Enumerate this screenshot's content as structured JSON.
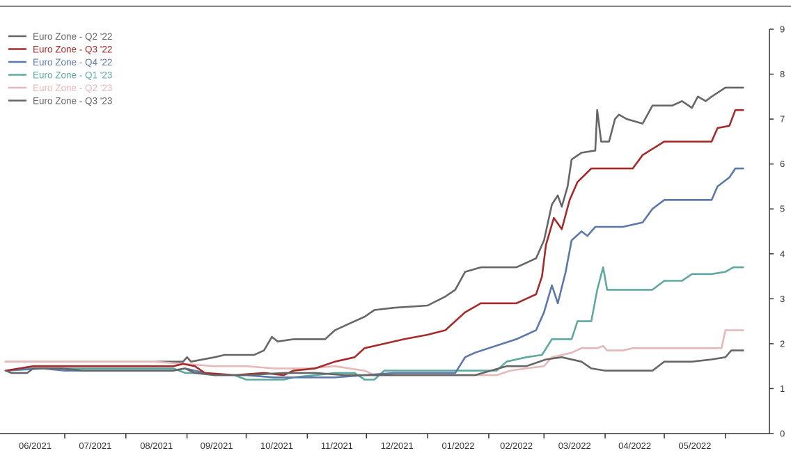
{
  "chart_data": {
    "type": "line",
    "title": "",
    "xlabel": "",
    "ylabel": "",
    "ylim": [
      0,
      9
    ],
    "yticks": [
      0,
      1,
      2,
      3,
      4,
      5,
      6,
      7,
      8,
      9
    ],
    "x_tick_labels": [
      "06/2021",
      "07/2021",
      "08/2021",
      "09/2021",
      "10/2021",
      "11/2021",
      "12/2021",
      "01/2022",
      "02/2022",
      "03/2022",
      "04/2022",
      "05/2022"
    ],
    "x_range": [
      "2021-06-01",
      "2022-06-12"
    ],
    "legend_position": "top-left",
    "grid": false,
    "series": [
      {
        "name": "Euro Zone - Q2 '22",
        "color": "#666666",
        "points": [
          [
            "2021-06-01",
            1.4
          ],
          [
            "2021-06-04",
            1.35
          ],
          [
            "2021-06-12",
            1.35
          ],
          [
            "2021-06-15",
            1.45
          ],
          [
            "2021-06-30",
            1.45
          ],
          [
            "2021-07-10",
            1.4
          ],
          [
            "2021-08-10",
            1.4
          ],
          [
            "2021-08-25",
            1.4
          ],
          [
            "2021-08-31",
            1.45
          ],
          [
            "2021-09-05",
            1.35
          ],
          [
            "2021-09-15",
            1.3
          ],
          [
            "2021-10-01",
            1.3
          ],
          [
            "2021-10-20",
            1.35
          ],
          [
            "2021-11-05",
            1.35
          ],
          [
            "2021-11-20",
            1.3
          ],
          [
            "2021-12-15",
            1.3
          ],
          [
            "2022-01-10",
            1.3
          ],
          [
            "2022-01-25",
            1.3
          ],
          [
            "2022-02-10",
            1.5
          ],
          [
            "2022-02-20",
            1.5
          ],
          [
            "2022-03-02",
            1.65
          ],
          [
            "2022-03-10",
            1.7
          ],
          [
            "2022-03-20",
            1.6
          ],
          [
            "2022-03-25",
            1.45
          ],
          [
            "2022-04-01",
            1.4
          ],
          [
            "2022-04-25",
            1.4
          ],
          [
            "2022-05-01",
            1.6
          ],
          [
            "2022-05-15",
            1.6
          ],
          [
            "2022-05-25",
            1.65
          ],
          [
            "2022-06-01",
            1.7
          ],
          [
            "2022-06-04",
            1.85
          ],
          [
            "2022-06-10",
            1.85
          ]
        ]
      },
      {
        "name": "Euro Zone - Q3 '22",
        "color": "#a52a2a",
        "points": [
          [
            "2021-06-01",
            1.4
          ],
          [
            "2021-06-15",
            1.5
          ],
          [
            "2021-07-15",
            1.5
          ],
          [
            "2021-08-01",
            1.5
          ],
          [
            "2021-08-25",
            1.5
          ],
          [
            "2021-08-30",
            1.55
          ],
          [
            "2021-09-05",
            1.5
          ],
          [
            "2021-09-10",
            1.35
          ],
          [
            "2021-09-25",
            1.3
          ],
          [
            "2021-10-10",
            1.35
          ],
          [
            "2021-10-20",
            1.3
          ],
          [
            "2021-10-25",
            1.4
          ],
          [
            "2021-11-05",
            1.45
          ],
          [
            "2021-11-15",
            1.6
          ],
          [
            "2021-11-25",
            1.7
          ],
          [
            "2021-11-30",
            1.9
          ],
          [
            "2021-12-10",
            2.0
          ],
          [
            "2021-12-20",
            2.1
          ],
          [
            "2022-01-01",
            2.2
          ],
          [
            "2022-01-10",
            2.3
          ],
          [
            "2022-01-20",
            2.7
          ],
          [
            "2022-01-28",
            2.9
          ],
          [
            "2022-02-15",
            2.9
          ],
          [
            "2022-02-20",
            3.0
          ],
          [
            "2022-02-25",
            3.1
          ],
          [
            "2022-02-28",
            3.5
          ],
          [
            "2022-03-02",
            4.2
          ],
          [
            "2022-03-06",
            4.8
          ],
          [
            "2022-03-10",
            4.55
          ],
          [
            "2022-03-14",
            5.2
          ],
          [
            "2022-03-18",
            5.6
          ],
          [
            "2022-03-25",
            5.9
          ],
          [
            "2022-04-15",
            5.9
          ],
          [
            "2022-04-20",
            6.2
          ],
          [
            "2022-05-01",
            6.5
          ],
          [
            "2022-05-25",
            6.5
          ],
          [
            "2022-05-28",
            6.8
          ],
          [
            "2022-06-03",
            6.85
          ],
          [
            "2022-06-06",
            7.2
          ],
          [
            "2022-06-10",
            7.2
          ]
        ]
      },
      {
        "name": "Euro Zone - Q4 '22",
        "color": "#5b78a8",
        "points": [
          [
            "2021-06-01",
            1.4
          ],
          [
            "2021-06-20",
            1.45
          ],
          [
            "2021-07-01",
            1.4
          ],
          [
            "2021-08-25",
            1.4
          ],
          [
            "2021-08-31",
            1.45
          ],
          [
            "2021-09-05",
            1.4
          ],
          [
            "2021-09-15",
            1.3
          ],
          [
            "2021-10-01",
            1.3
          ],
          [
            "2021-10-15",
            1.25
          ],
          [
            "2021-11-05",
            1.25
          ],
          [
            "2021-11-15",
            1.25
          ],
          [
            "2021-11-30",
            1.3
          ],
          [
            "2021-12-15",
            1.35
          ],
          [
            "2022-01-15",
            1.35
          ],
          [
            "2022-01-20",
            1.7
          ],
          [
            "2022-01-25",
            1.8
          ],
          [
            "2022-02-01",
            1.9
          ],
          [
            "2022-02-15",
            2.1
          ],
          [
            "2022-02-25",
            2.3
          ],
          [
            "2022-03-01",
            2.7
          ],
          [
            "2022-03-05",
            3.3
          ],
          [
            "2022-03-08",
            2.9
          ],
          [
            "2022-03-12",
            3.6
          ],
          [
            "2022-03-15",
            4.3
          ],
          [
            "2022-03-20",
            4.5
          ],
          [
            "2022-03-23",
            4.4
          ],
          [
            "2022-03-27",
            4.6
          ],
          [
            "2022-04-10",
            4.6
          ],
          [
            "2022-04-20",
            4.7
          ],
          [
            "2022-04-25",
            5.0
          ],
          [
            "2022-05-01",
            5.2
          ],
          [
            "2022-05-25",
            5.2
          ],
          [
            "2022-05-28",
            5.5
          ],
          [
            "2022-06-03",
            5.7
          ],
          [
            "2022-06-06",
            5.9
          ],
          [
            "2022-06-10",
            5.9
          ]
        ]
      },
      {
        "name": "Euro Zone - Q1 '23",
        "color": "#5fa8a0",
        "points": [
          [
            "2021-06-01",
            1.4
          ],
          [
            "2021-06-10",
            1.45
          ],
          [
            "2021-07-01",
            1.45
          ],
          [
            "2021-08-15",
            1.45
          ],
          [
            "2021-08-25",
            1.45
          ],
          [
            "2021-08-31",
            1.35
          ],
          [
            "2021-09-10",
            1.35
          ],
          [
            "2021-09-25",
            1.3
          ],
          [
            "2021-10-01",
            1.2
          ],
          [
            "2021-10-20",
            1.2
          ],
          [
            "2021-10-25",
            1.25
          ],
          [
            "2021-11-05",
            1.3
          ],
          [
            "2021-11-15",
            1.35
          ],
          [
            "2021-11-25",
            1.35
          ],
          [
            "2021-11-30",
            1.2
          ],
          [
            "2021-12-05",
            1.2
          ],
          [
            "2021-12-10",
            1.4
          ],
          [
            "2022-01-01",
            1.4
          ],
          [
            "2022-01-15",
            1.4
          ],
          [
            "2022-01-25",
            1.4
          ],
          [
            "2022-02-05",
            1.4
          ],
          [
            "2022-02-10",
            1.6
          ],
          [
            "2022-02-20",
            1.7
          ],
          [
            "2022-02-28",
            1.75
          ],
          [
            "2022-03-05",
            2.1
          ],
          [
            "2022-03-15",
            2.1
          ],
          [
            "2022-03-18",
            2.5
          ],
          [
            "2022-03-25",
            2.5
          ],
          [
            "2022-03-28",
            3.2
          ],
          [
            "2022-03-31",
            3.7
          ],
          [
            "2022-04-02",
            3.2
          ],
          [
            "2022-04-25",
            3.2
          ],
          [
            "2022-05-01",
            3.4
          ],
          [
            "2022-05-10",
            3.4
          ],
          [
            "2022-05-15",
            3.55
          ],
          [
            "2022-05-25",
            3.55
          ],
          [
            "2022-06-01",
            3.6
          ],
          [
            "2022-06-05",
            3.7
          ],
          [
            "2022-06-10",
            3.7
          ]
        ]
      },
      {
        "name": "Euro Zone - Q2 '23",
        "color": "#e6b8b8",
        "points": [
          [
            "2021-06-01",
            1.6
          ],
          [
            "2021-07-01",
            1.6
          ],
          [
            "2021-08-15",
            1.6
          ],
          [
            "2021-08-31",
            1.55
          ],
          [
            "2021-09-15",
            1.5
          ],
          [
            "2021-10-01",
            1.5
          ],
          [
            "2021-10-15",
            1.45
          ],
          [
            "2021-11-01",
            1.45
          ],
          [
            "2021-11-15",
            1.5
          ],
          [
            "2021-11-30",
            1.4
          ],
          [
            "2021-12-05",
            1.3
          ],
          [
            "2022-01-01",
            1.3
          ],
          [
            "2022-01-25",
            1.3
          ],
          [
            "2022-02-05",
            1.3
          ],
          [
            "2022-02-12",
            1.4
          ],
          [
            "2022-02-20",
            1.45
          ],
          [
            "2022-03-01",
            1.5
          ],
          [
            "2022-03-05",
            1.7
          ],
          [
            "2022-03-15",
            1.8
          ],
          [
            "2022-03-20",
            1.9
          ],
          [
            "2022-03-28",
            1.9
          ],
          [
            "2022-03-31",
            1.95
          ],
          [
            "2022-04-02",
            1.85
          ],
          [
            "2022-04-10",
            1.85
          ],
          [
            "2022-04-15",
            1.9
          ],
          [
            "2022-05-01",
            1.9
          ],
          [
            "2022-05-25",
            1.9
          ],
          [
            "2022-05-30",
            1.9
          ],
          [
            "2022-06-01",
            2.3
          ],
          [
            "2022-06-10",
            2.3
          ]
        ]
      },
      {
        "name": "Euro Zone - Q3 '23",
        "color": "#666666",
        "points": [
          [
            "2021-06-01",
            1.6
          ],
          [
            "2021-07-01",
            1.6
          ],
          [
            "2021-08-15",
            1.6
          ],
          [
            "2021-08-30",
            1.6
          ],
          [
            "2021-09-01",
            1.7
          ],
          [
            "2021-09-03",
            1.6
          ],
          [
            "2021-09-15",
            1.7
          ],
          [
            "2021-09-20",
            1.75
          ],
          [
            "2021-10-05",
            1.75
          ],
          [
            "2021-10-10",
            1.85
          ],
          [
            "2021-10-14",
            2.15
          ],
          [
            "2021-10-17",
            2.05
          ],
          [
            "2021-10-25",
            2.1
          ],
          [
            "2021-11-10",
            2.1
          ],
          [
            "2021-11-15",
            2.3
          ],
          [
            "2021-11-25",
            2.5
          ],
          [
            "2021-11-30",
            2.6
          ],
          [
            "2021-12-05",
            2.75
          ],
          [
            "2021-12-15",
            2.8
          ],
          [
            "2022-01-01",
            2.85
          ],
          [
            "2022-01-10",
            3.05
          ],
          [
            "2022-01-15",
            3.2
          ],
          [
            "2022-01-20",
            3.6
          ],
          [
            "2022-01-28",
            3.7
          ],
          [
            "2022-02-15",
            3.7
          ],
          [
            "2022-02-20",
            3.8
          ],
          [
            "2022-02-25",
            3.9
          ],
          [
            "2022-03-01",
            4.3
          ],
          [
            "2022-03-05",
            5.1
          ],
          [
            "2022-03-08",
            5.3
          ],
          [
            "2022-03-10",
            5.05
          ],
          [
            "2022-03-13",
            5.5
          ],
          [
            "2022-03-15",
            6.1
          ],
          [
            "2022-03-20",
            6.25
          ],
          [
            "2022-03-27",
            6.3
          ],
          [
            "2022-03-28",
            7.2
          ],
          [
            "2022-03-30",
            6.5
          ],
          [
            "2022-04-03",
            6.5
          ],
          [
            "2022-04-06",
            7.0
          ],
          [
            "2022-04-08",
            7.1
          ],
          [
            "2022-04-12",
            7.0
          ],
          [
            "2022-04-20",
            6.9
          ],
          [
            "2022-04-25",
            7.3
          ],
          [
            "2022-05-05",
            7.3
          ],
          [
            "2022-05-10",
            7.4
          ],
          [
            "2022-05-15",
            7.25
          ],
          [
            "2022-05-18",
            7.5
          ],
          [
            "2022-05-22",
            7.4
          ],
          [
            "2022-05-25",
            7.5
          ],
          [
            "2022-06-01",
            7.7
          ],
          [
            "2022-06-10",
            7.7
          ]
        ]
      }
    ]
  }
}
